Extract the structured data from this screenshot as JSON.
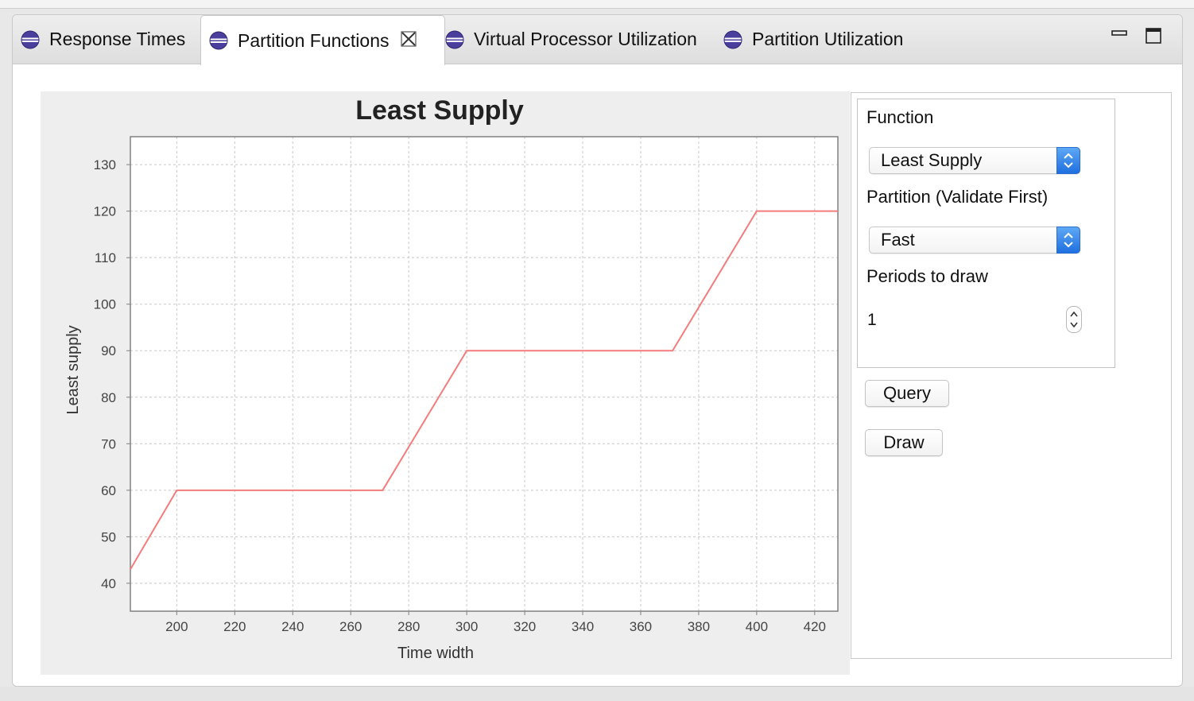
{
  "tabs": [
    {
      "label": "Response Times",
      "icon": "eclipse-view-icon",
      "active": false
    },
    {
      "label": "Partition Functions",
      "icon": "eclipse-view-icon",
      "active": true,
      "closable": true
    },
    {
      "label": "Virtual Processor Utilization",
      "icon": "eclipse-view-icon",
      "active": false
    },
    {
      "label": "Partition Utilization",
      "icon": "eclipse-view-icon",
      "active": false
    }
  ],
  "window_controls": {
    "minimize_icon": "minimize-icon",
    "maximize_icon": "maximize-icon"
  },
  "side_panel": {
    "function_label": "Function",
    "function_value": "Least Supply",
    "partition_label": "Partition (Validate First)",
    "partition_value": "Fast",
    "periods_label": "Periods to draw",
    "periods_value": "1",
    "query_button": "Query",
    "draw_button": "Draw"
  },
  "colors": {
    "series": "#f47c7c",
    "accent_blue": "#2a7de8",
    "icon_purple": "#4b3f9e"
  },
  "chart_data": {
    "type": "line",
    "title": "Least Supply",
    "xlabel": "Time width",
    "ylabel": "Least supply",
    "xlim": [
      184,
      428
    ],
    "ylim": [
      34,
      136
    ],
    "xticks": [
      200,
      220,
      240,
      260,
      280,
      300,
      320,
      340,
      360,
      380,
      400,
      420
    ],
    "yticks": [
      40,
      50,
      60,
      70,
      80,
      90,
      100,
      110,
      120,
      130
    ],
    "grid": true,
    "legend": "none",
    "series": [
      {
        "points": [
          [
            184,
            43
          ],
          [
            200,
            60
          ],
          [
            271,
            60
          ],
          [
            300,
            90
          ],
          [
            371,
            90
          ],
          [
            400,
            120
          ],
          [
            428,
            120
          ]
        ]
      }
    ]
  }
}
